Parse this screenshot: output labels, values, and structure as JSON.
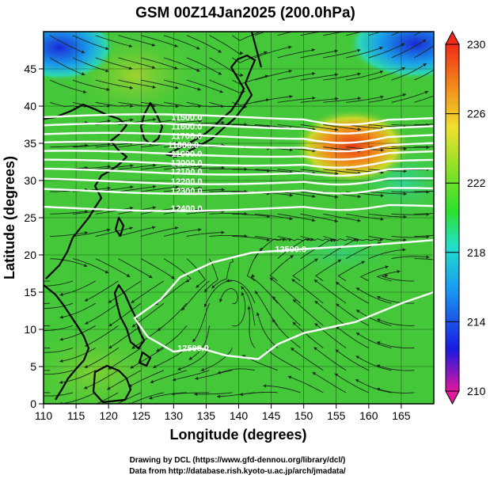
{
  "chart_data": {
    "type": "heatmap",
    "title": "GSM 00Z14Jan2025 (200.0hPa)",
    "xlabel": "Longitude (degrees)",
    "ylabel": "Latitude  (degrees)",
    "xlim": [
      110,
      170
    ],
    "ylim": [
      0,
      50
    ],
    "x_ticks": [
      110,
      115,
      120,
      125,
      130,
      135,
      140,
      145,
      150,
      155,
      160,
      165
    ],
    "y_ticks": [
      0,
      5,
      10,
      15,
      20,
      25,
      30,
      35,
      40,
      45
    ],
    "colorbar": {
      "range": [
        210,
        230
      ],
      "tick_labels": [
        210,
        214,
        218,
        222,
        226,
        230
      ],
      "colors": [
        "#e0189c",
        "#1a1ae0",
        "#1a9ef0",
        "#22e0c8",
        "#2ee02e",
        "#9ce02a",
        "#f0e030",
        "#f08a1a",
        "#f02a1a"
      ]
    },
    "field_colors": {
      "dominant_green": "#44c83a",
      "warm_high": "#e8561a",
      "cold_low": "#2244d8"
    },
    "contour_labels": [
      {
        "text": "11500.0",
        "lon": 132.0,
        "lat": 38.5
      },
      {
        "text": "11600.0",
        "lon": 132.0,
        "lat": 37.3
      },
      {
        "text": "11700.0",
        "lon": 132.0,
        "lat": 36.0
      },
      {
        "text": "11800.0",
        "lon": 131.5,
        "lat": 34.8
      },
      {
        "text": "11900.0",
        "lon": 132.0,
        "lat": 33.6
      },
      {
        "text": "12000.0",
        "lon": 132.0,
        "lat": 32.4
      },
      {
        "text": "12100.0",
        "lon": 132.0,
        "lat": 31.2
      },
      {
        "text": "12200.0",
        "lon": 132.0,
        "lat": 29.9
      },
      {
        "text": "12300.0",
        "lon": 132.0,
        "lat": 28.6
      },
      {
        "text": "12400.0",
        "lon": 132.0,
        "lat": 26.3
      },
      {
        "text": "12500.0",
        "lon": 148.0,
        "lat": 20.8
      },
      {
        "text": "12500.0",
        "lon": 133.0,
        "lat": 7.5
      }
    ],
    "credit_lines": [
      "Drawing by DCL (https://www.gfd-dennou.org/library/dcl/)",
      "Data from http://database.rish.kyoto-u.ac.jp/arch/jmadata/"
    ]
  }
}
